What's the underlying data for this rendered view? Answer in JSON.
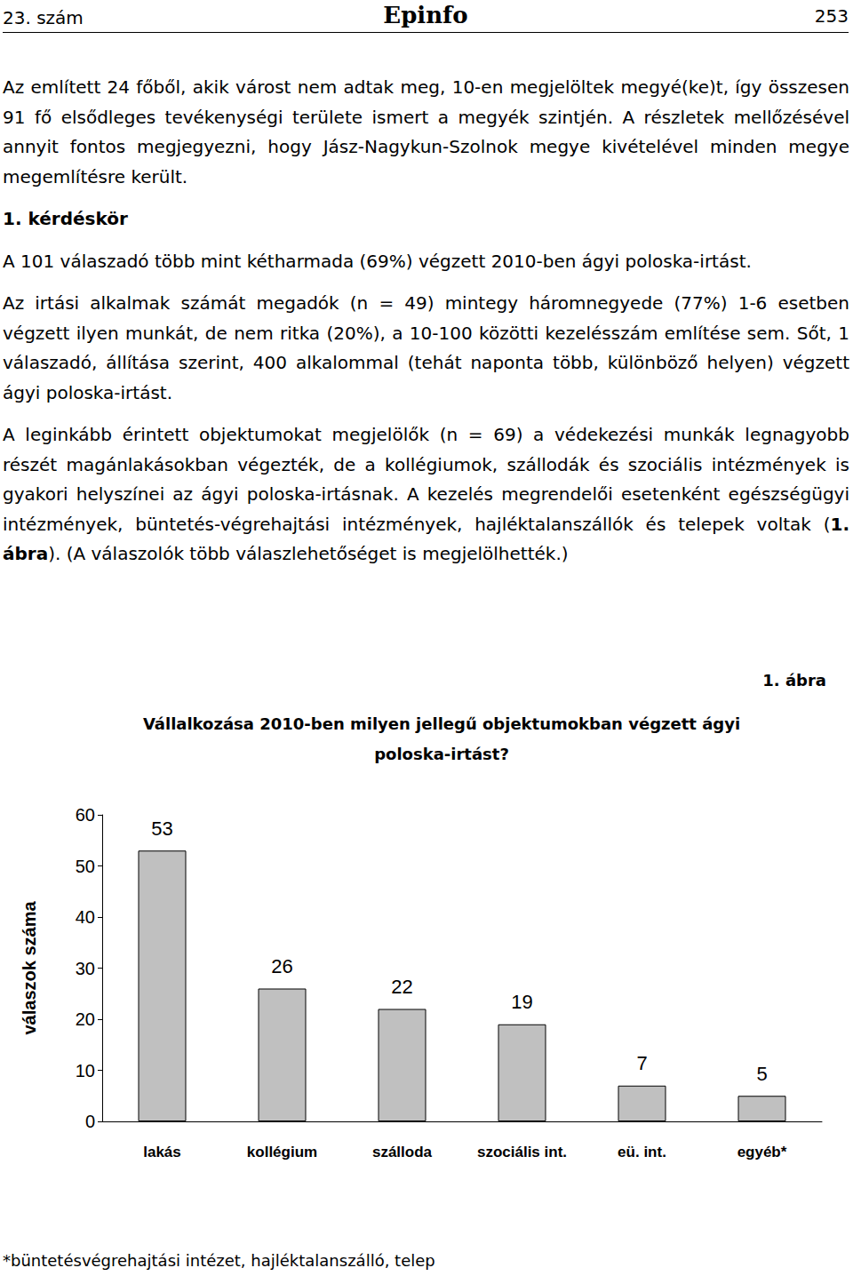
{
  "header": {
    "left": "23. szám",
    "center": "Epinfo",
    "right": "253"
  },
  "paragraphs": [
    [
      {
        "text": "Az említett 24 főből, akik várost nem adtak meg, 10-en megjelöltek megyé(ke)t, így összesen 91 fő elsődleges tevékenységi területe ismert a megyék szintjén. A részletek mellőzésével annyit fontos megjegyezni, hogy Jász-Nagykun-Szolnok megye kivételével minden megye megemlítésre került.",
        "bold": false
      }
    ],
    [
      {
        "text": "1. kérdéskör",
        "bold": true
      }
    ],
    [
      {
        "text": "A 101 válaszadó több mint kétharmada (69%) végzett 2010-ben ágyi poloska-irtást.",
        "bold": false
      }
    ],
    [
      {
        "text": "Az irtási alkalmak számát megadók (n = 49) mintegy háromnegyede (77%) 1-6 esetben végzett ilyen munkát, de nem ritka (20%), a 10-100 közötti kezelésszám említése sem. Sőt, 1 válaszadó, állítása szerint, 400 alkalommal (tehát naponta több, különböző helyen) végzett ágyi poloska-irtást.",
        "bold": false
      }
    ],
    [
      {
        "text": "A leginkább érintett objektumokat megjelölők (n = 69) a védekezési munkák legnagyobb részét magánlakásokban végezték, de a kollégiumok, szállodák és szociális intézmények is gyakori helyszínei az ágyi poloska-irtásnak. A kezelés megrendelői esetenként egészségügyi intézmények, büntetés-végrehajtási intézmények, hajléktalanszállók és telepek voltak (",
        "bold": false
      },
      {
        "text": "1. ábra",
        "bold": true
      },
      {
        "text": "). (A válaszolók több válaszlehetőséget is megjelölhették.)",
        "bold": false
      }
    ]
  ],
  "figure_label": "1. ábra",
  "chart_data": {
    "type": "bar",
    "title": "Vállalkozása 2010-ben milyen jellegű objektumokban végzett ágyi poloska-irtást?",
    "ylabel": "válaszok száma",
    "categories": [
      "lakás",
      "kollégium",
      "szálloda",
      "szociális int.",
      "eü. int.",
      "egyéb*"
    ],
    "values": [
      53,
      26,
      22,
      19,
      7,
      5
    ],
    "color": "#c0c0c0",
    "ylim": [
      0,
      60
    ],
    "yticks": [
      0,
      10,
      20,
      30,
      40,
      50,
      60
    ],
    "grid": false,
    "data_labels": true
  },
  "footnote": "*büntetésvégrehajtási intézet, hajléktalanszálló, telep"
}
